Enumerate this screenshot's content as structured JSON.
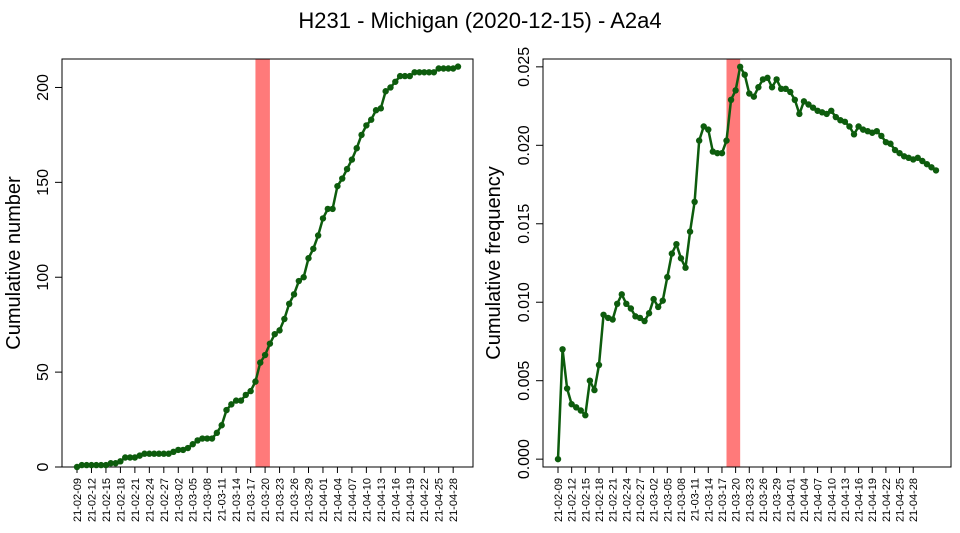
{
  "title": "H231 - Michigan (2020-12-15) - A2a4",
  "colors": {
    "line": "#0d5c0d",
    "highlight": "#ff7a7a",
    "axis": "#000000"
  },
  "dates": [
    "21-02-09",
    "21-02-12",
    "21-02-15",
    "21-02-18",
    "21-02-21",
    "21-02-24",
    "21-02-27",
    "21-03-02",
    "21-03-05",
    "21-03-08",
    "21-03-11",
    "21-03-14",
    "21-03-17",
    "21-03-20",
    "21-03-23",
    "21-03-26",
    "21-03-29",
    "21-04-01",
    "21-04-04",
    "21-04-07",
    "21-04-10",
    "21-04-13",
    "21-04-16",
    "21-04-19",
    "21-04-22",
    "21-04-25",
    "21-04-28"
  ],
  "chart_data": [
    {
      "type": "line",
      "ylabel": "Cumulative number",
      "ylim": [
        0,
        215
      ],
      "yticks": [
        0,
        50,
        100,
        150,
        200
      ],
      "ytick_labels": [
        "0",
        "50",
        "100",
        "150",
        "200"
      ],
      "highlight_range": [
        "21-03-18",
        "21-03-21"
      ],
      "x_start": "21-02-09",
      "values": [
        0,
        1,
        1,
        1,
        1,
        1,
        1,
        2,
        2,
        3,
        5,
        5,
        5,
        6,
        7,
        7,
        7,
        7,
        7,
        7,
        8,
        9,
        9,
        10,
        12,
        14,
        15,
        15,
        15,
        18,
        22,
        30,
        33,
        35,
        35,
        38,
        40,
        45,
        55,
        59,
        65,
        70,
        72,
        78,
        86,
        91,
        98,
        100,
        110,
        115,
        122,
        131,
        136,
        136,
        148,
        152,
        157,
        162,
        168,
        175,
        180,
        183,
        188,
        189,
        198,
        200,
        203,
        206,
        206,
        206,
        208,
        208,
        208,
        208,
        208,
        210,
        210,
        210,
        210,
        211
      ]
    },
    {
      "type": "line",
      "ylabel": "Cumulative frequency",
      "ylim": [
        -0.0005,
        0.0255
      ],
      "yticks": [
        0,
        0.005,
        0.01,
        0.015,
        0.02,
        0.025
      ],
      "ytick_labels": [
        "0.000",
        "0.005",
        "0.010",
        "0.015",
        "0.020",
        "0.025"
      ],
      "highlight_range": [
        "21-03-18",
        "21-03-21"
      ],
      "x_start": "21-02-09",
      "values": [
        0,
        0.007,
        0.0045,
        0.0035,
        0.0033,
        0.0031,
        0.0028,
        0.005,
        0.0044,
        0.006,
        0.0092,
        0.009,
        0.0089,
        0.0099,
        0.0105,
        0.0099,
        0.0096,
        0.0091,
        0.009,
        0.0088,
        0.0093,
        0.0102,
        0.0097,
        0.0101,
        0.0116,
        0.0131,
        0.0137,
        0.0128,
        0.0122,
        0.0145,
        0.0164,
        0.0203,
        0.0212,
        0.021,
        0.0196,
        0.0195,
        0.0195,
        0.0203,
        0.0229,
        0.0235,
        0.025,
        0.0245,
        0.0233,
        0.0231,
        0.0237,
        0.0242,
        0.0243,
        0.0237,
        0.0242,
        0.0236,
        0.0236,
        0.0234,
        0.0229,
        0.022,
        0.0228,
        0.0226,
        0.0224,
        0.0222,
        0.0221,
        0.022,
        0.0222,
        0.0218,
        0.0216,
        0.0215,
        0.0212,
        0.0207,
        0.0212,
        0.021,
        0.0209,
        0.0208,
        0.0209,
        0.0206,
        0.0202,
        0.0201,
        0.0197,
        0.0195,
        0.0193,
        0.0192,
        0.0191,
        0.0192,
        0.019,
        0.0188,
        0.0186,
        0.0184
      ]
    }
  ]
}
